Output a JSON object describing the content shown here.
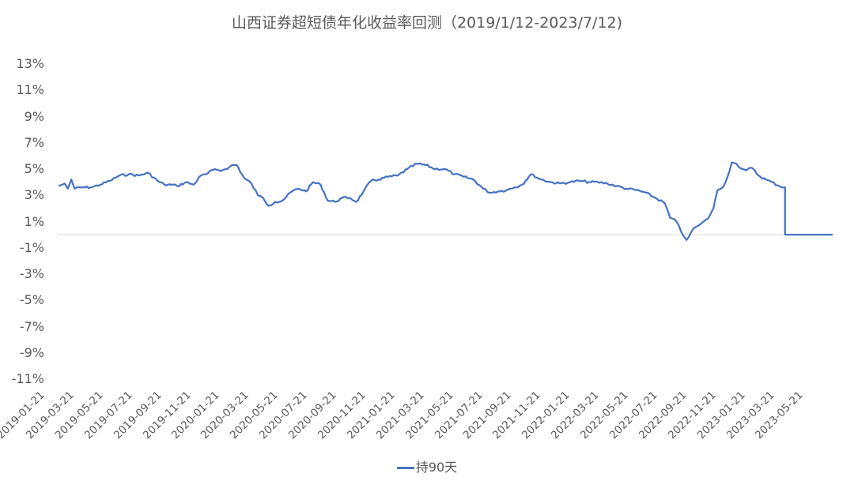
{
  "chart_data": {
    "type": "line",
    "title": "山西证券超短债年化收益率回测（2019/1/12-2023/7/12)",
    "xlabel": "",
    "ylabel": "",
    "ylim": [
      -11,
      13
    ],
    "yticks": [
      "13%",
      "11%",
      "9%",
      "7%",
      "5%",
      "3%",
      "1%",
      "-1%",
      "-3%",
      "-5%",
      "-7%",
      "-9%",
      "-11%"
    ],
    "xticks": [
      "2019-01-21",
      "2019-03-21",
      "2019-05-21",
      "2019-07-21",
      "2019-09-21",
      "2019-11-21",
      "2020-01-21",
      "2020-03-21",
      "2020-05-21",
      "2020-07-21",
      "2020-09-21",
      "2020-11-21",
      "2021-01-21",
      "2021-03-21",
      "2021-05-21",
      "2021-07-21",
      "2021-09-21",
      "2021-11-21",
      "2022-01-21",
      "2022-03-21",
      "2022-05-21",
      "2022-07-21",
      "2022-09-21",
      "2022-11-21",
      "2023-01-21",
      "2023-03-21",
      "2023-05-21"
    ],
    "grid": false,
    "legend_position": "bottom",
    "series": [
      {
        "name": "持90天",
        "color": "#4472c4",
        "x": [
          "2019-01-12",
          "2019-01-25",
          "2019-02-01",
          "2019-02-08",
          "2019-02-15",
          "2019-03-01",
          "2019-03-21",
          "2019-04-10",
          "2019-05-01",
          "2019-05-21",
          "2019-06-10",
          "2019-07-01",
          "2019-07-21",
          "2019-08-10",
          "2019-08-25",
          "2019-09-10",
          "2019-09-21",
          "2019-10-10",
          "2019-10-25",
          "2019-11-10",
          "2019-11-21",
          "2019-12-10",
          "2019-12-25",
          "2020-01-05",
          "2020-01-15",
          "2020-01-25",
          "2020-02-10",
          "2020-02-25",
          "2020-03-10",
          "2020-03-21",
          "2020-04-01",
          "2020-04-15",
          "2020-05-01",
          "2020-05-21",
          "2020-06-05",
          "2020-06-20",
          "2020-07-05",
          "2020-07-21",
          "2020-08-05",
          "2020-08-20",
          "2020-09-05",
          "2020-09-21",
          "2020-10-05",
          "2020-10-20",
          "2020-11-05",
          "2020-11-21",
          "2020-12-10",
          "2021-01-01",
          "2021-01-21",
          "2021-02-10",
          "2021-03-01",
          "2021-03-21",
          "2021-04-10",
          "2021-05-01",
          "2021-05-21",
          "2021-06-10",
          "2021-07-01",
          "2021-07-15",
          "2021-08-01",
          "2021-08-20",
          "2021-09-05",
          "2021-09-21",
          "2021-10-10",
          "2021-11-01",
          "2021-11-21",
          "2021-12-10",
          "2022-01-01",
          "2022-01-21",
          "2022-02-10",
          "2022-03-01",
          "2022-03-21",
          "2022-04-10",
          "2022-05-01",
          "2022-05-21",
          "2022-06-10",
          "2022-07-01",
          "2022-07-21",
          "2022-08-01",
          "2022-08-15",
          "2022-08-25",
          "2022-09-05",
          "2022-09-15",
          "2022-09-25",
          "2022-10-05",
          "2022-10-20",
          "2022-11-01",
          "2022-11-10",
          "2022-11-21",
          "2022-12-01",
          "2022-12-10",
          "2022-12-20",
          "2023-01-01",
          "2023-01-10",
          "2023-01-21",
          "2023-02-05",
          "2023-02-20",
          "2023-03-05",
          "2023-03-21",
          "2023-04-01",
          "2023-04-02",
          "2023-05-01",
          "2023-06-01",
          "2023-07-12"
        ],
        "values": [
          3.7,
          3.9,
          3.5,
          4.2,
          3.5,
          3.6,
          3.6,
          3.8,
          4.1,
          4.5,
          4.6,
          4.5,
          4.7,
          4.1,
          3.8,
          3.8,
          3.7,
          4.0,
          3.8,
          4.5,
          4.6,
          5.0,
          4.9,
          5.0,
          5.3,
          5.3,
          4.3,
          3.9,
          3.0,
          2.8,
          2.2,
          2.5,
          2.6,
          3.3,
          3.5,
          3.3,
          4.0,
          3.8,
          2.6,
          2.5,
          2.8,
          2.8,
          2.5,
          3.3,
          4.1,
          4.2,
          4.4,
          4.5,
          5.0,
          5.4,
          5.3,
          5.0,
          5.0,
          4.6,
          4.4,
          4.2,
          3.5,
          3.2,
          3.3,
          3.4,
          3.6,
          3.8,
          4.6,
          4.2,
          4.0,
          3.9,
          4.0,
          4.1,
          4.0,
          4.0,
          3.9,
          3.7,
          3.5,
          3.4,
          3.2,
          2.8,
          2.4,
          1.3,
          1.0,
          0.2,
          -0.4,
          0.2,
          0.6,
          0.8,
          1.2,
          2.0,
          3.4,
          3.6,
          4.4,
          5.5,
          5.4,
          5.0,
          4.9,
          5.1,
          4.5,
          4.2,
          4.0,
          3.7,
          3.6,
          0.0,
          0.0,
          0.0,
          0.0
        ]
      }
    ]
  },
  "legend": {
    "label": "持90天"
  }
}
